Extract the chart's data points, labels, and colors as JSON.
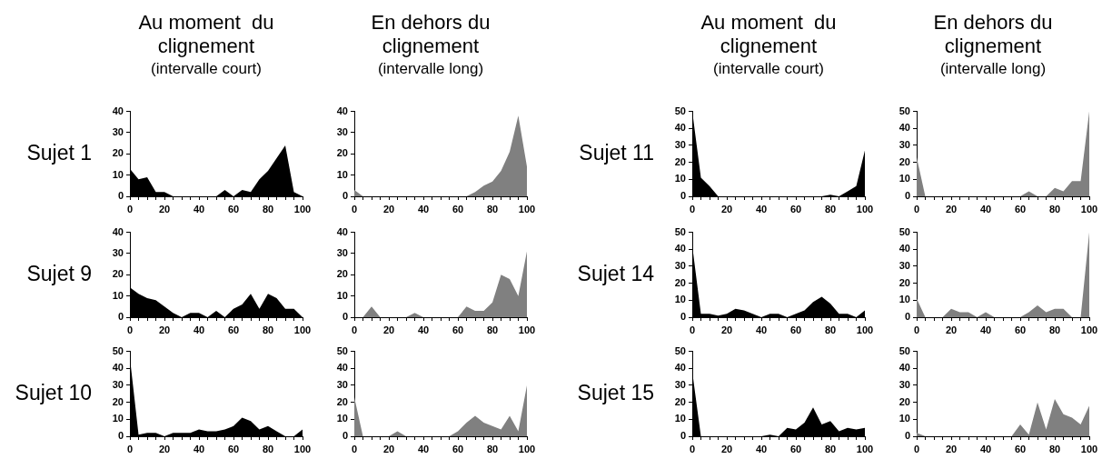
{
  "chart_data": [
    {
      "type": "area",
      "title": "Au moment  du clignement",
      "subtitle": "(intervalle court)",
      "ylabel": "Sujet 1",
      "color": "#000000",
      "x": [
        0,
        5,
        10,
        15,
        20,
        25,
        30,
        35,
        40,
        45,
        50,
        55,
        60,
        65,
        70,
        75,
        80,
        85,
        90,
        95,
        100
      ],
      "values": [
        13,
        8,
        9,
        2,
        2,
        0,
        0,
        0,
        0,
        0,
        0,
        3,
        0,
        3,
        2,
        8,
        12,
        18,
        24,
        2,
        0
      ],
      "xlim": [
        0,
        100
      ],
      "xticks": [
        0,
        {
          "value": 5,
          "label": null
        },
        {
          "value": 10,
          "label": null
        },
        {
          "value": 15,
          "label": null
        },
        20,
        {
          "value": 25,
          "label": null
        },
        {
          "value": 30,
          "label": null
        },
        {
          "value": 35,
          "label": null
        },
        40,
        {
          "value": 45,
          "label": null
        },
        {
          "value": 50,
          "label": null
        },
        {
          "value": 55,
          "label": null
        },
        60,
        {
          "value": 65,
          "label": null
        },
        {
          "value": 70,
          "label": null
        },
        {
          "value": 75,
          "label": null
        },
        80,
        {
          "value": 85,
          "label": null
        },
        {
          "value": 90,
          "label": null
        },
        {
          "value": 95,
          "label": null
        },
        100
      ],
      "ylim": [
        0,
        40
      ],
      "yticks": [
        0,
        10,
        20,
        30,
        40
      ]
    },
    {
      "type": "area",
      "title": "En dehors du clignement",
      "subtitle": "(intervalle long)",
      "color": "#808080",
      "x": [
        0,
        5,
        10,
        15,
        20,
        25,
        30,
        35,
        40,
        45,
        50,
        55,
        60,
        65,
        70,
        75,
        80,
        85,
        90,
        95,
        100
      ],
      "values": [
        3,
        0,
        0,
        0,
        0,
        0,
        0,
        0,
        0,
        0,
        0,
        0,
        0,
        0,
        2,
        5,
        7,
        12,
        21,
        38,
        14
      ],
      "xlim": [
        0,
        100
      ],
      "xticks": [
        0,
        {
          "value": 5,
          "label": null
        },
        {
          "value": 10,
          "label": null
        },
        {
          "value": 15,
          "label": null
        },
        20,
        {
          "value": 25,
          "label": null
        },
        {
          "value": 30,
          "label": null
        },
        {
          "value": 35,
          "label": null
        },
        40,
        {
          "value": 45,
          "label": null
        },
        {
          "value": 50,
          "label": null
        },
        {
          "value": 55,
          "label": null
        },
        60,
        {
          "value": 65,
          "label": null
        },
        {
          "value": 70,
          "label": null
        },
        {
          "value": 75,
          "label": null
        },
        80,
        {
          "value": 85,
          "label": null
        },
        {
          "value": 90,
          "label": null
        },
        {
          "value": 95,
          "label": null
        },
        100
      ],
      "ylim": [
        0,
        40
      ],
      "yticks": [
        0,
        10,
        20,
        30,
        40
      ]
    },
    {
      "type": "area",
      "title": "Au moment  du clignement",
      "subtitle": "(intervalle court)",
      "ylabel": "Sujet 11",
      "color": "#000000",
      "x": [
        0,
        5,
        10,
        15,
        20,
        25,
        30,
        35,
        40,
        45,
        50,
        55,
        60,
        65,
        70,
        75,
        80,
        85,
        90,
        95,
        100
      ],
      "values": [
        50,
        11,
        6,
        0,
        0,
        0,
        0,
        0,
        0,
        0,
        0,
        0,
        0,
        0,
        0,
        0,
        1,
        0,
        3,
        6,
        27
      ],
      "xlim": [
        0,
        100
      ],
      "xticks": [
        0,
        {
          "value": 5,
          "label": null
        },
        {
          "value": 10,
          "label": null
        },
        {
          "value": 15,
          "label": null
        },
        20,
        {
          "value": 25,
          "label": null
        },
        {
          "value": 30,
          "label": null
        },
        {
          "value": 35,
          "label": null
        },
        40,
        {
          "value": 45,
          "label": null
        },
        {
          "value": 50,
          "label": null
        },
        {
          "value": 55,
          "label": null
        },
        60,
        {
          "value": 65,
          "label": null
        },
        {
          "value": 70,
          "label": null
        },
        {
          "value": 75,
          "label": null
        },
        80,
        {
          "value": 85,
          "label": null
        },
        {
          "value": 90,
          "label": null
        },
        {
          "value": 95,
          "label": null
        },
        100
      ],
      "ylim": [
        0,
        50
      ],
      "yticks": [
        0,
        10,
        20,
        30,
        40,
        50
      ]
    },
    {
      "type": "area",
      "title": "En dehors du clignement",
      "subtitle": "(intervalle long)",
      "color": "#808080",
      "x": [
        0,
        5,
        10,
        15,
        20,
        25,
        30,
        35,
        40,
        45,
        50,
        55,
        60,
        65,
        70,
        75,
        80,
        85,
        90,
        95,
        100
      ],
      "values": [
        23,
        0,
        0,
        0,
        0,
        0,
        0,
        0,
        0,
        0,
        0,
        0,
        0,
        3,
        0,
        0,
        5,
        3,
        9,
        9,
        50
      ],
      "xlim": [
        0,
        100
      ],
      "xticks": [
        0,
        {
          "value": 5,
          "label": null
        },
        {
          "value": 10,
          "label": null
        },
        {
          "value": 15,
          "label": null
        },
        20,
        {
          "value": 25,
          "label": null
        },
        {
          "value": 30,
          "label": null
        },
        {
          "value": 35,
          "label": null
        },
        40,
        {
          "value": 45,
          "label": null
        },
        {
          "value": 50,
          "label": null
        },
        {
          "value": 55,
          "label": null
        },
        60,
        {
          "value": 65,
          "label": null
        },
        {
          "value": 70,
          "label": null
        },
        {
          "value": 75,
          "label": null
        },
        80,
        {
          "value": 85,
          "label": null
        },
        {
          "value": 90,
          "label": null
        },
        {
          "value": 95,
          "label": null
        },
        100
      ],
      "ylim": [
        0,
        50
      ],
      "yticks": [
        0,
        10,
        20,
        30,
        40,
        50
      ]
    },
    {
      "type": "area",
      "ylabel": "Sujet 9",
      "color": "#000000",
      "x": [
        0,
        5,
        10,
        15,
        20,
        25,
        30,
        35,
        40,
        45,
        50,
        55,
        60,
        65,
        70,
        75,
        80,
        85,
        90,
        95,
        100
      ],
      "values": [
        14,
        11,
        9,
        8,
        5,
        2,
        0,
        2,
        2,
        0,
        3,
        0,
        4,
        6,
        11,
        4,
        11,
        9,
        4,
        4,
        0
      ],
      "xlim": [
        0,
        100
      ],
      "xticks": [
        0,
        {
          "value": 5,
          "label": null
        },
        {
          "value": 10,
          "label": null
        },
        {
          "value": 15,
          "label": null
        },
        20,
        {
          "value": 25,
          "label": null
        },
        {
          "value": 30,
          "label": null
        },
        {
          "value": 35,
          "label": null
        },
        40,
        {
          "value": 45,
          "label": null
        },
        {
          "value": 50,
          "label": null
        },
        {
          "value": 55,
          "label": null
        },
        60,
        {
          "value": 65,
          "label": null
        },
        {
          "value": 70,
          "label": null
        },
        {
          "value": 75,
          "label": null
        },
        80,
        {
          "value": 85,
          "label": null
        },
        {
          "value": 90,
          "label": null
        },
        {
          "value": 95,
          "label": null
        },
        100
      ],
      "ylim": [
        0,
        40
      ],
      "yticks": [
        0,
        10,
        20,
        30,
        40
      ]
    },
    {
      "type": "area",
      "color": "#808080",
      "x": [
        0,
        5,
        10,
        15,
        20,
        25,
        30,
        35,
        40,
        45,
        50,
        55,
        60,
        65,
        70,
        75,
        80,
        85,
        90,
        95,
        100
      ],
      "values": [
        0,
        0,
        5,
        0,
        0,
        0,
        0,
        2,
        0,
        0,
        0,
        0,
        0,
        5,
        3,
        3,
        7,
        20,
        18,
        10,
        31
      ],
      "xlim": [
        0,
        100
      ],
      "xticks": [
        0,
        {
          "value": 5,
          "label": null
        },
        {
          "value": 10,
          "label": null
        },
        {
          "value": 15,
          "label": null
        },
        20,
        {
          "value": 25,
          "label": null
        },
        {
          "value": 30,
          "label": null
        },
        {
          "value": 35,
          "label": null
        },
        40,
        {
          "value": 45,
          "label": null
        },
        {
          "value": 50,
          "label": null
        },
        {
          "value": 55,
          "label": null
        },
        60,
        {
          "value": 65,
          "label": null
        },
        {
          "value": 70,
          "label": null
        },
        {
          "value": 75,
          "label": null
        },
        80,
        {
          "value": 85,
          "label": null
        },
        {
          "value": 90,
          "label": null
        },
        {
          "value": 95,
          "label": null
        },
        100
      ],
      "ylim": [
        0,
        40
      ],
      "yticks": [
        0,
        10,
        20,
        30,
        40
      ]
    },
    {
      "type": "area",
      "ylabel": "Sujet 14",
      "color": "#000000",
      "x": [
        0,
        5,
        10,
        15,
        20,
        25,
        30,
        35,
        40,
        45,
        50,
        55,
        60,
        65,
        70,
        75,
        80,
        85,
        90,
        95,
        100
      ],
      "values": [
        42,
        2,
        2,
        1,
        2,
        5,
        4,
        2,
        0,
        2,
        2,
        0,
        2,
        4,
        9,
        12,
        8,
        2,
        2,
        0,
        4
      ],
      "xlim": [
        0,
        100
      ],
      "xticks": [
        0,
        {
          "value": 5,
          "label": null
        },
        {
          "value": 10,
          "label": null
        },
        {
          "value": 15,
          "label": null
        },
        20,
        {
          "value": 25,
          "label": null
        },
        {
          "value": 30,
          "label": null
        },
        {
          "value": 35,
          "label": null
        },
        40,
        {
          "value": 45,
          "label": null
        },
        {
          "value": 50,
          "label": null
        },
        {
          "value": 55,
          "label": null
        },
        60,
        {
          "value": 65,
          "label": null
        },
        {
          "value": 70,
          "label": null
        },
        {
          "value": 75,
          "label": null
        },
        80,
        {
          "value": 85,
          "label": null
        },
        {
          "value": 90,
          "label": null
        },
        {
          "value": 95,
          "label": null
        },
        100
      ],
      "ylim": [
        0,
        50
      ],
      "yticks": [
        0,
        10,
        20,
        30,
        40,
        50
      ]
    },
    {
      "type": "area",
      "color": "#808080",
      "x": [
        0,
        5,
        10,
        15,
        20,
        25,
        30,
        35,
        40,
        45,
        50,
        55,
        60,
        65,
        70,
        75,
        80,
        85,
        90,
        95,
        100
      ],
      "values": [
        11,
        0,
        0,
        0,
        5,
        3,
        3,
        0,
        3,
        0,
        0,
        0,
        0,
        3,
        7,
        3,
        5,
        5,
        0,
        0,
        50
      ],
      "xlim": [
        0,
        100
      ],
      "xticks": [
        0,
        {
          "value": 5,
          "label": null
        },
        {
          "value": 10,
          "label": null
        },
        {
          "value": 15,
          "label": null
        },
        20,
        {
          "value": 25,
          "label": null
        },
        {
          "value": 30,
          "label": null
        },
        {
          "value": 35,
          "label": null
        },
        40,
        {
          "value": 45,
          "label": null
        },
        {
          "value": 50,
          "label": null
        },
        {
          "value": 55,
          "label": null
        },
        60,
        {
          "value": 65,
          "label": null
        },
        {
          "value": 70,
          "label": null
        },
        {
          "value": 75,
          "label": null
        },
        80,
        {
          "value": 85,
          "label": null
        },
        {
          "value": 90,
          "label": null
        },
        {
          "value": 95,
          "label": null
        },
        100
      ],
      "ylim": [
        0,
        50
      ],
      "yticks": [
        0,
        10,
        20,
        30,
        40,
        50
      ]
    },
    {
      "type": "area",
      "ylabel": "Sujet 10",
      "color": "#000000",
      "x": [
        0,
        5,
        10,
        15,
        20,
        25,
        30,
        35,
        40,
        45,
        50,
        55,
        60,
        65,
        70,
        75,
        80,
        85,
        90,
        95,
        100
      ],
      "values": [
        46,
        1,
        2,
        2,
        0,
        2,
        2,
        2,
        4,
        3,
        3,
        4,
        6,
        11,
        9,
        4,
        6,
        3,
        0,
        0,
        4
      ],
      "xlim": [
        0,
        100
      ],
      "xticks": [
        0,
        {
          "value": 5,
          "label": null
        },
        {
          "value": 10,
          "label": null
        },
        {
          "value": 15,
          "label": null
        },
        20,
        {
          "value": 25,
          "label": null
        },
        {
          "value": 30,
          "label": null
        },
        {
          "value": 35,
          "label": null
        },
        40,
        {
          "value": 45,
          "label": null
        },
        {
          "value": 50,
          "label": null
        },
        {
          "value": 55,
          "label": null
        },
        60,
        {
          "value": 65,
          "label": null
        },
        {
          "value": 70,
          "label": null
        },
        {
          "value": 75,
          "label": null
        },
        80,
        {
          "value": 85,
          "label": null
        },
        {
          "value": 90,
          "label": null
        },
        {
          "value": 95,
          "label": null
        },
        100
      ],
      "ylim": [
        0,
        50
      ],
      "yticks": [
        0,
        10,
        20,
        30,
        40,
        50
      ]
    },
    {
      "type": "area",
      "color": "#808080",
      "x": [
        0,
        5,
        10,
        15,
        20,
        25,
        30,
        35,
        40,
        45,
        50,
        55,
        60,
        65,
        70,
        75,
        80,
        85,
        90,
        95,
        100
      ],
      "values": [
        23,
        0,
        0,
        0,
        0,
        3,
        0,
        0,
        0,
        0,
        0,
        0,
        3,
        8,
        12,
        8,
        6,
        4,
        12,
        3,
        30
      ],
      "xlim": [
        0,
        100
      ],
      "xticks": [
        0,
        {
          "value": 5,
          "label": null
        },
        {
          "value": 10,
          "label": null
        },
        {
          "value": 15,
          "label": null
        },
        20,
        {
          "value": 25,
          "label": null
        },
        {
          "value": 30,
          "label": null
        },
        {
          "value": 35,
          "label": null
        },
        40,
        {
          "value": 45,
          "label": null
        },
        {
          "value": 50,
          "label": null
        },
        {
          "value": 55,
          "label": null
        },
        60,
        {
          "value": 65,
          "label": null
        },
        {
          "value": 70,
          "label": null
        },
        {
          "value": 75,
          "label": null
        },
        80,
        {
          "value": 85,
          "label": null
        },
        {
          "value": 90,
          "label": null
        },
        {
          "value": 95,
          "label": null
        },
        100
      ],
      "ylim": [
        0,
        50
      ],
      "yticks": [
        0,
        10,
        20,
        30,
        40,
        50
      ]
    },
    {
      "type": "area",
      "ylabel": "Sujet 15",
      "color": "#000000",
      "x": [
        0,
        5,
        10,
        15,
        20,
        25,
        30,
        35,
        40,
        45,
        50,
        55,
        60,
        65,
        70,
        75,
        80,
        85,
        90,
        95,
        100
      ],
      "values": [
        38,
        0,
        0,
        0,
        0,
        0,
        0,
        0,
        0,
        1,
        0,
        5,
        4,
        8,
        17,
        7,
        9,
        3,
        5,
        4,
        5
      ],
      "xlim": [
        0,
        100
      ],
      "xticks": [
        0,
        {
          "value": 5,
          "label": null
        },
        {
          "value": 10,
          "label": null
        },
        {
          "value": 15,
          "label": null
        },
        20,
        {
          "value": 25,
          "label": null
        },
        {
          "value": 30,
          "label": null
        },
        {
          "value": 35,
          "label": null
        },
        40,
        {
          "value": 45,
          "label": null
        },
        {
          "value": 50,
          "label": null
        },
        {
          "value": 55,
          "label": null
        },
        60,
        {
          "value": 65,
          "label": null
        },
        {
          "value": 70,
          "label": null
        },
        {
          "value": 75,
          "label": null
        },
        80,
        {
          "value": 85,
          "label": null
        },
        {
          "value": 90,
          "label": null
        },
        {
          "value": 95,
          "label": null
        },
        100
      ],
      "ylim": [
        0,
        50
      ],
      "yticks": [
        0,
        10,
        20,
        30,
        40,
        50
      ]
    },
    {
      "type": "area",
      "color": "#808080",
      "x": [
        0,
        5,
        10,
        15,
        20,
        25,
        30,
        35,
        40,
        45,
        50,
        55,
        60,
        65,
        70,
        75,
        80,
        85,
        90,
        95,
        100
      ],
      "values": [
        2,
        0,
        0,
        0,
        0,
        0,
        0,
        0,
        0,
        0,
        0,
        0,
        7,
        1,
        20,
        4,
        22,
        13,
        11,
        7,
        18
      ],
      "xlim": [
        0,
        100
      ],
      "xticks": [
        0,
        {
          "value": 5,
          "label": null
        },
        {
          "value": 10,
          "label": null
        },
        {
          "value": 15,
          "label": null
        },
        20,
        {
          "value": 25,
          "label": null
        },
        {
          "value": 30,
          "label": null
        },
        {
          "value": 35,
          "label": null
        },
        40,
        {
          "value": 45,
          "label": null
        },
        {
          "value": 50,
          "label": null
        },
        {
          "value": 55,
          "label": null
        },
        60,
        {
          "value": 65,
          "label": null
        },
        {
          "value": 70,
          "label": null
        },
        {
          "value": 75,
          "label": null
        },
        80,
        {
          "value": 85,
          "label": null
        },
        {
          "value": 90,
          "label": null
        },
        {
          "value": 95,
          "label": null
        },
        100
      ],
      "ylim": [
        0,
        50
      ],
      "yticks": [
        0,
        10,
        20,
        30,
        40,
        50
      ]
    }
  ]
}
